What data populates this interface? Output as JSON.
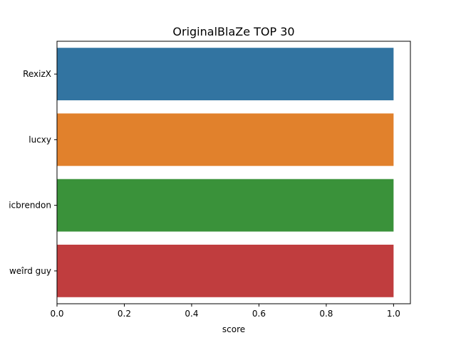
{
  "chart_data": {
    "type": "bar",
    "orientation": "horizontal",
    "title": "OriginalBlaZe TOP 30",
    "xlabel": "score",
    "ylabel": "",
    "categories": [
      "RexizX",
      "lucxy",
      "icbrendon",
      "weîrd guy"
    ],
    "values": [
      1.0,
      1.0,
      1.0,
      1.0
    ],
    "colors": [
      "#3274a1",
      "#e1812c",
      "#3a923a",
      "#c03d3e"
    ],
    "xlim": [
      0,
      1.05
    ],
    "xticks": [
      0.0,
      0.2,
      0.4,
      0.6,
      0.8,
      1.0
    ],
    "xtick_labels": [
      "0.0",
      "0.2",
      "0.4",
      "0.6",
      "0.8",
      "1.0"
    ],
    "grid": false,
    "legend": "none"
  }
}
